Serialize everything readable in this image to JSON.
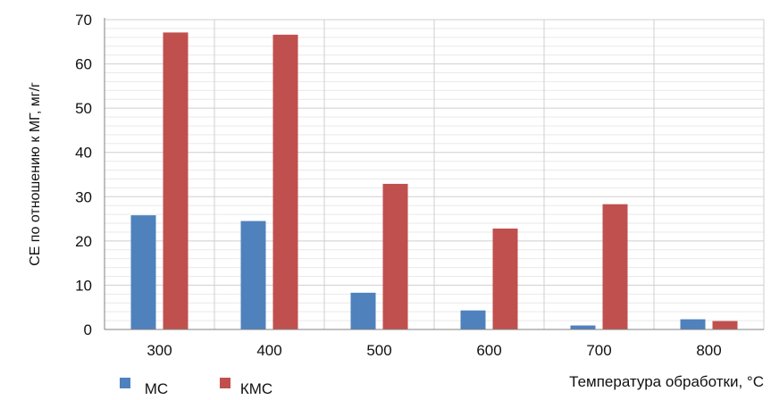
{
  "chart_data": {
    "type": "bar",
    "title": "",
    "xlabel": "Температура обработки, °C",
    "ylabel": "CE по отношению к МГ, мг/г",
    "categories": [
      "300",
      "400",
      "500",
      "600",
      "700",
      "800"
    ],
    "series": [
      {
        "name": "МС",
        "color": "#4f81bd",
        "values": [
          25.8,
          24.5,
          8.3,
          4.3,
          0.9,
          2.3
        ]
      },
      {
        "name": "КМС",
        "color": "#c0504d",
        "values": [
          67.1,
          66.6,
          32.9,
          22.8,
          28.3,
          1.9
        ]
      }
    ],
    "ylim": [
      0,
      70
    ],
    "yticks": [
      0,
      10,
      20,
      30,
      40,
      50,
      60,
      70
    ],
    "grid": true,
    "legend": "bottom-left"
  }
}
